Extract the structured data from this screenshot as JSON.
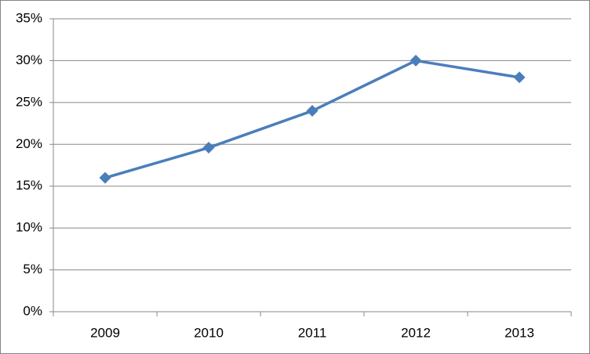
{
  "chart_data": {
    "type": "line",
    "categories": [
      "2009",
      "2010",
      "2011",
      "2012",
      "2013"
    ],
    "values": [
      16,
      19.6,
      24,
      30,
      28
    ],
    "color": "#4a7ebb",
    "ylim": [
      0,
      35
    ],
    "yticks": [
      {
        "value": 0,
        "label": "0%"
      },
      {
        "value": 5,
        "label": "5%"
      },
      {
        "value": 10,
        "label": "10%"
      },
      {
        "value": 15,
        "label": "15%"
      },
      {
        "value": 20,
        "label": "20%"
      },
      {
        "value": 25,
        "label": "25%"
      },
      {
        "value": 30,
        "label": "30%"
      },
      {
        "value": 35,
        "label": "35%"
      }
    ],
    "grid": true
  }
}
